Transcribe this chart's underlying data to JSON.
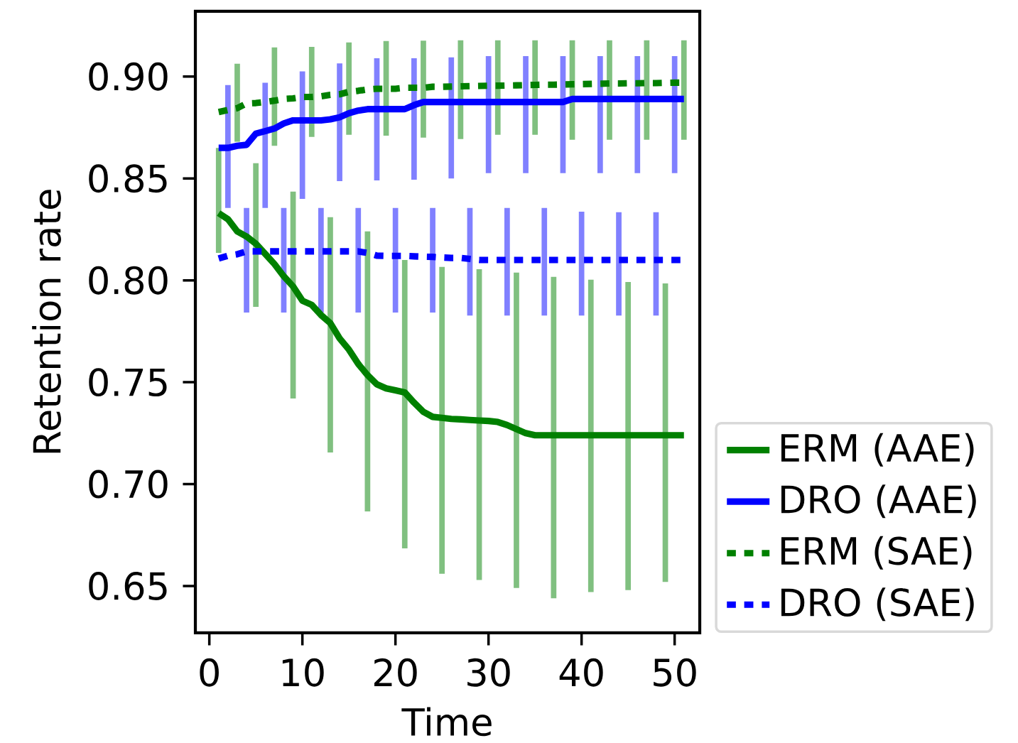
{
  "chart_data": {
    "type": "line",
    "xlabel": "Time",
    "ylabel": "Retention rate",
    "x": [
      1,
      2,
      3,
      4,
      5,
      6,
      7,
      8,
      9,
      10,
      11,
      12,
      13,
      14,
      15,
      16,
      17,
      18,
      19,
      20,
      21,
      22,
      23,
      24,
      25,
      26,
      27,
      28,
      29,
      30,
      31,
      32,
      33,
      34,
      35,
      36,
      37,
      38,
      39,
      40,
      41,
      42,
      43,
      44,
      45,
      46,
      47,
      48,
      49,
      50,
      51
    ],
    "series": [
      {
        "name": "ERM (AAE)",
        "color": "#008000",
        "line_style": "solid",
        "values": [
          0.833,
          0.83,
          0.824,
          0.8215,
          0.818,
          0.813,
          0.808,
          0.802,
          0.797,
          0.79,
          0.788,
          0.783,
          0.779,
          0.7715,
          0.766,
          0.759,
          0.7535,
          0.749,
          0.747,
          0.746,
          0.745,
          0.74,
          0.7355,
          0.733,
          0.7325,
          0.732,
          0.7318,
          0.7315,
          0.7312,
          0.731,
          0.7305,
          0.729,
          0.727,
          0.725,
          0.724,
          0.724,
          0.724,
          0.724,
          0.724,
          0.724,
          0.724,
          0.724,
          0.724,
          0.724,
          0.724,
          0.724,
          0.724,
          0.724,
          0.724,
          0.724,
          0.724
        ],
        "errors": [
          [
            0.8135,
            0.865
          ],
          null,
          null,
          null,
          [
            0.787,
            0.8575
          ],
          null,
          null,
          null,
          [
            0.742,
            0.8435
          ],
          null,
          null,
          null,
          [
            0.7155,
            0.831
          ],
          null,
          null,
          null,
          [
            0.6866,
            0.824
          ],
          null,
          null,
          null,
          [
            0.6685,
            0.81
          ],
          null,
          null,
          null,
          [
            0.656,
            0.8066
          ],
          null,
          null,
          null,
          [
            0.653,
            0.8055
          ],
          null,
          null,
          null,
          [
            0.649,
            0.8038
          ],
          null,
          null,
          null,
          [
            0.644,
            0.8017
          ],
          null,
          null,
          null,
          [
            0.647,
            0.8003
          ],
          null,
          null,
          null,
          [
            0.648,
            0.7992
          ],
          null,
          null,
          null,
          [
            0.652,
            0.7985
          ],
          null,
          null
        ]
      },
      {
        "name": "DRO (AAE)",
        "color": "#0000ff",
        "line_style": "solid",
        "values": [
          0.865,
          0.865,
          0.866,
          0.8665,
          0.872,
          0.8732,
          0.8745,
          0.877,
          0.8785,
          0.8785,
          0.8785,
          0.8785,
          0.879,
          0.88,
          0.882,
          0.8833,
          0.884,
          0.884,
          0.884,
          0.884,
          0.884,
          0.886,
          0.8875,
          0.8875,
          0.8875,
          0.8875,
          0.8875,
          0.8875,
          0.8875,
          0.8875,
          0.8875,
          0.8875,
          0.8875,
          0.8875,
          0.8875,
          0.8875,
          0.8875,
          0.8875,
          0.889,
          0.889,
          0.889,
          0.889,
          0.889,
          0.889,
          0.889,
          0.889,
          0.889,
          0.889,
          0.889,
          0.889,
          0.889
        ],
        "errors": [
          null,
          [
            0.8355,
            0.8958
          ],
          null,
          null,
          null,
          [
            0.8355,
            0.897
          ],
          null,
          null,
          null,
          [
            0.84,
            0.9025
          ],
          null,
          null,
          null,
          [
            0.8487,
            0.9065
          ],
          null,
          null,
          null,
          [
            0.849,
            0.909
          ],
          null,
          null,
          null,
          [
            0.8494,
            0.909
          ],
          null,
          null,
          null,
          [
            0.85,
            0.9094
          ],
          null,
          null,
          null,
          [
            0.8526,
            0.91
          ],
          null,
          null,
          null,
          [
            0.8526,
            0.91
          ],
          null,
          null,
          null,
          [
            0.8526,
            0.91
          ],
          null,
          null,
          null,
          [
            0.8526,
            0.91
          ],
          null,
          null,
          null,
          [
            0.8526,
            0.91
          ],
          null,
          null,
          null,
          [
            0.8526,
            0.91
          ],
          null
        ]
      },
      {
        "name": "ERM (SAE)",
        "color": "#008000",
        "line_style": "dotted",
        "values": [
          0.8826,
          0.8836,
          0.8845,
          0.8868,
          0.887,
          0.8875,
          0.8882,
          0.889,
          0.8893,
          0.89,
          0.89,
          0.8903,
          0.891,
          0.8913,
          0.8925,
          0.893,
          0.8937,
          0.894,
          0.894,
          0.894,
          0.8945,
          0.8945,
          0.8945,
          0.895,
          0.895,
          0.8951,
          0.8952,
          0.8953,
          0.8954,
          0.8955,
          0.8955,
          0.8956,
          0.8957,
          0.8958,
          0.8959,
          0.896,
          0.896,
          0.8961,
          0.8962,
          0.8963,
          0.8964,
          0.8965,
          0.8966,
          0.8966,
          0.8967,
          0.8967,
          0.8968,
          0.8968,
          0.8969,
          0.897,
          0.897
        ],
        "errors": [
          null,
          null,
          [
            0.868,
            0.9063
          ],
          null,
          null,
          null,
          [
            0.866,
            0.9143
          ],
          null,
          null,
          null,
          [
            0.8704,
            0.9146
          ],
          null,
          null,
          null,
          [
            0.8714,
            0.9167
          ],
          null,
          null,
          null,
          [
            0.871,
            0.9174
          ],
          null,
          null,
          null,
          [
            0.87,
            0.9176
          ],
          null,
          null,
          null,
          [
            0.8693,
            0.9178
          ],
          null,
          null,
          null,
          [
            0.8714,
            0.9178
          ],
          null,
          null,
          null,
          [
            0.8714,
            0.9178
          ],
          null,
          null,
          null,
          [
            0.869,
            0.9178
          ],
          null,
          null,
          null,
          [
            0.869,
            0.9178
          ],
          null,
          null,
          null,
          [
            0.869,
            0.9178
          ],
          null,
          null,
          null,
          [
            0.869,
            0.9178
          ]
        ]
      },
      {
        "name": "DRO (SAE)",
        "color": "#0000ff",
        "line_style": "dotted",
        "values": [
          0.8107,
          0.8121,
          0.8128,
          0.8142,
          0.8142,
          0.8142,
          0.8142,
          0.8142,
          0.8142,
          0.8142,
          0.8142,
          0.8142,
          0.8142,
          0.8142,
          0.8142,
          0.8142,
          0.8135,
          0.8121,
          0.812,
          0.812,
          0.812,
          0.8118,
          0.8116,
          0.8115,
          0.8112,
          0.811,
          0.811,
          0.8105,
          0.81,
          0.81,
          0.81,
          0.81,
          0.81,
          0.81,
          0.81,
          0.81,
          0.81,
          0.81,
          0.81,
          0.81,
          0.81,
          0.81,
          0.81,
          0.81,
          0.81,
          0.81,
          0.81,
          0.81,
          0.81,
          0.81,
          0.81
        ],
        "errors": [
          null,
          null,
          null,
          [
            0.7842,
            0.8355
          ],
          null,
          null,
          null,
          [
            0.7842,
            0.8355
          ],
          null,
          null,
          null,
          [
            0.7842,
            0.8355
          ],
          null,
          null,
          null,
          [
            0.7842,
            0.8355
          ],
          null,
          null,
          null,
          [
            0.7842,
            0.8355
          ],
          null,
          null,
          null,
          [
            0.7842,
            0.8355
          ],
          null,
          null,
          null,
          [
            0.7827,
            0.8355
          ],
          null,
          null,
          null,
          [
            0.7827,
            0.8355
          ],
          null,
          null,
          null,
          [
            0.7827,
            0.8355
          ],
          null,
          null,
          null,
          [
            0.7827,
            0.8337
          ],
          null,
          null,
          null,
          [
            0.7827,
            0.8334
          ],
          null,
          null,
          null,
          [
            0.7827,
            0.8334
          ],
          null,
          null,
          null
        ]
      }
    ],
    "xlim": [
      -1.5,
      52.7
    ],
    "ylim": [
      0.627,
      0.932
    ],
    "xticks": [
      0,
      10,
      20,
      30,
      40,
      50
    ],
    "yticks": [
      {
        "value": 0.65,
        "label": "0.65"
      },
      {
        "value": 0.7,
        "label": "0.70"
      },
      {
        "value": 0.75,
        "label": "0.75"
      },
      {
        "value": 0.8,
        "label": "0.80"
      },
      {
        "value": 0.85,
        "label": "0.85"
      },
      {
        "value": 0.9,
        "label": "0.90"
      }
    ],
    "legend": "bottom right",
    "grid": false,
    "marker": "none"
  }
}
